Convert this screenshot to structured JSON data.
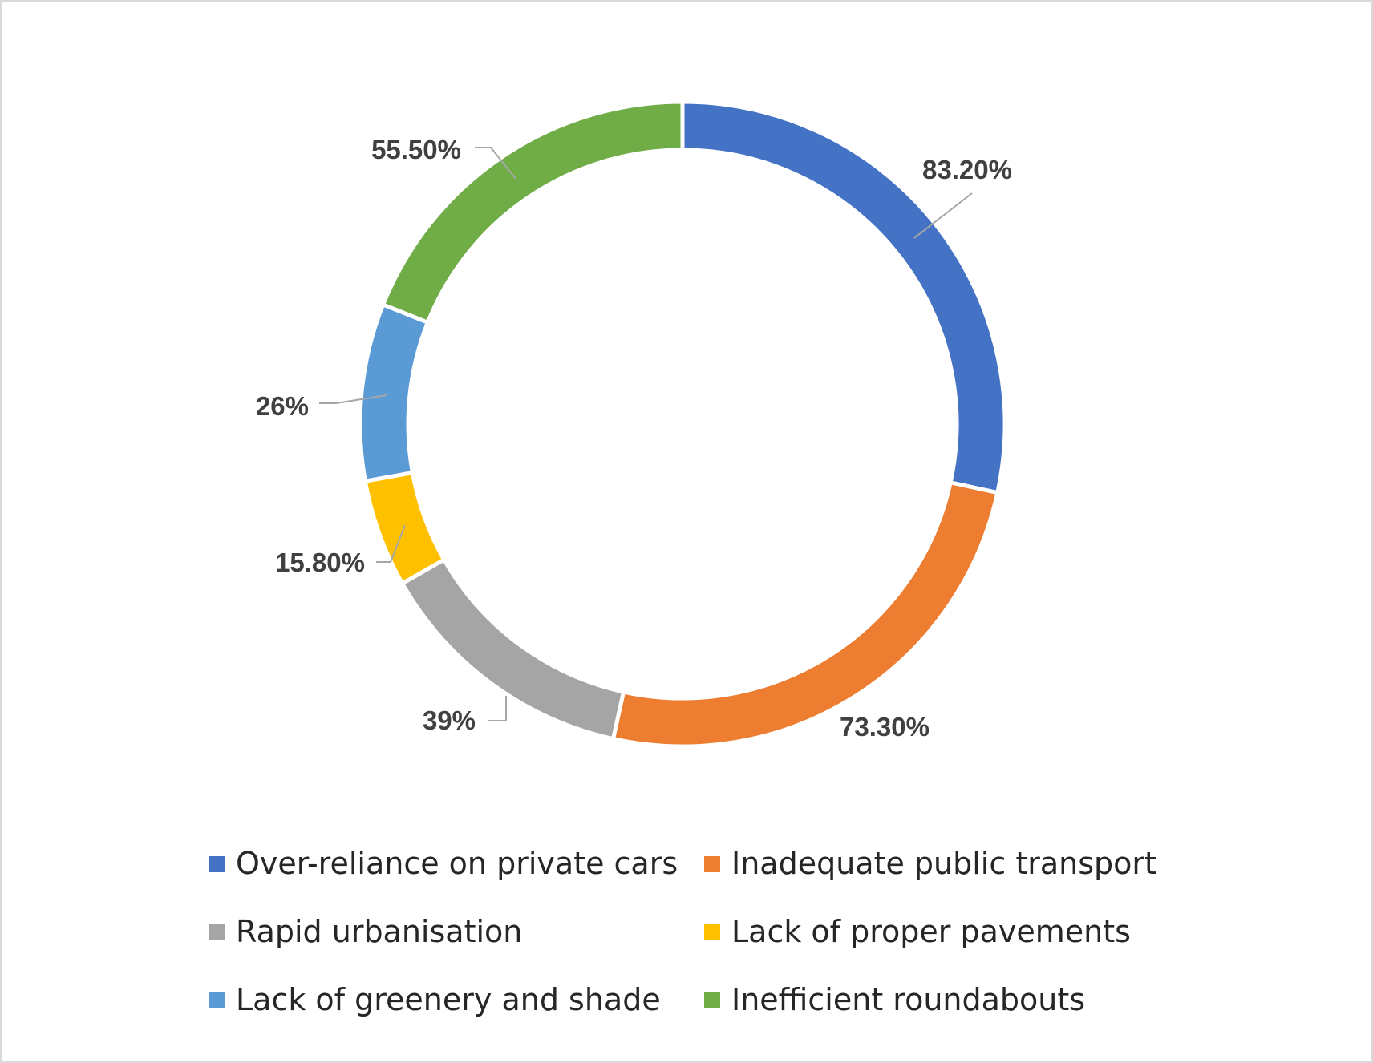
{
  "chart_data": {
    "type": "pie",
    "subtype": "doughnut",
    "title": "",
    "legend_position": "bottom",
    "categories": [
      "Over-reliance on private cars",
      "Inadequate public transport",
      "Rapid urbanisation",
      "Lack of proper pavements",
      "Lack of greenery and shade",
      "Inefficient roundabouts"
    ],
    "values": [
      83.2,
      73.3,
      39,
      15.8,
      26,
      55.5
    ],
    "data_labels": [
      "83.20%",
      "73.30%",
      "39%",
      "15.80%",
      "26%",
      "55.50%"
    ],
    "colors": [
      "#4472C4",
      "#ED7D31",
      "#A5A5A5",
      "#FFC000",
      "#5B9BD5",
      "#70AD47"
    ]
  }
}
